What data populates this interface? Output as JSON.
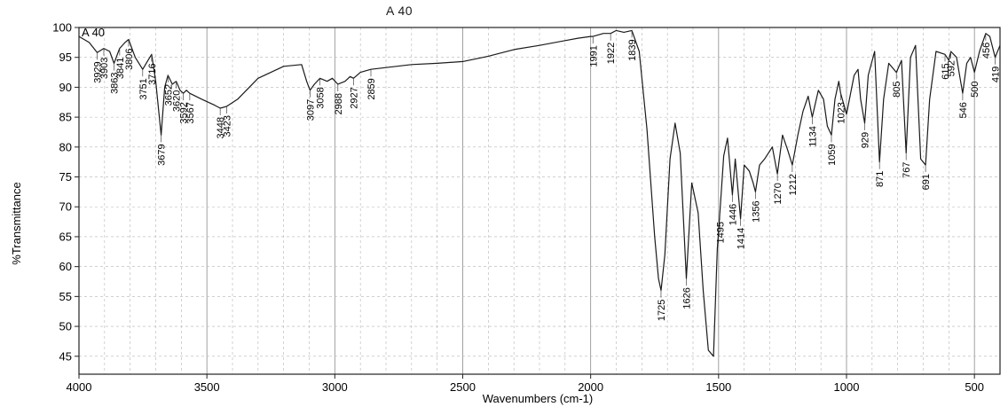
{
  "chart_data": {
    "type": "line",
    "title": "A 40",
    "inner_label": "A 40",
    "xlabel": "Wavenumbers (cm-1)",
    "ylabel": "%Transmittance",
    "xlim": [
      4000,
      400
    ],
    "ylim": [
      42,
      100
    ],
    "x_ticks": [
      4000,
      3500,
      3000,
      2500,
      2000,
      1500,
      1000,
      500
    ],
    "y_ticks": [
      45,
      50,
      55,
      60,
      65,
      70,
      75,
      80,
      85,
      90,
      95,
      100
    ],
    "grid": true,
    "series": [
      {
        "x": [
          4000,
          3960,
          3929,
          3903,
          3880,
          3863,
          3841,
          3820,
          3806,
          3780,
          3751,
          3730,
          3716,
          3700,
          3679,
          3665,
          3652,
          3635,
          3620,
          3605,
          3592,
          3580,
          3567,
          3520,
          3470,
          3448,
          3423,
          3380,
          3300,
          3200,
          3130,
          3110,
          3097,
          3080,
          3058,
          3030,
          3010,
          2988,
          2960,
          2940,
          2927,
          2900,
          2859,
          2800,
          2700,
          2600,
          2500,
          2400,
          2300,
          2200,
          2100,
          2050,
          2000,
          1991,
          1950,
          1922,
          1900,
          1870,
          1839,
          1810,
          1780,
          1750,
          1735,
          1725,
          1710,
          1690,
          1670,
          1650,
          1626,
          1605,
          1580,
          1560,
          1540,
          1520,
          1505,
          1495,
          1480,
          1465,
          1446,
          1435,
          1414,
          1400,
          1380,
          1365,
          1356,
          1340,
          1320,
          1290,
          1270,
          1250,
          1230,
          1212,
          1190,
          1170,
          1150,
          1134,
          1110,
          1090,
          1075,
          1059,
          1045,
          1030,
          1023,
          1000,
          970,
          955,
          945,
          929,
          915,
          890,
          871,
          855,
          835,
          805,
          785,
          767,
          750,
          730,
          710,
          691,
          675,
          650,
          615,
          600,
          592,
          570,
          546,
          530,
          515,
          500,
          480,
          456,
          440,
          419,
          400
        ],
        "y": [
          98.5,
          97.5,
          95.8,
          96.5,
          96,
          94,
          96.5,
          97.5,
          98,
          95,
          93,
          94.5,
          95.5,
          91,
          82,
          90,
          92,
          90.5,
          91,
          89.5,
          89,
          89.5,
          89,
          88,
          87,
          86.5,
          86.8,
          88,
          91.5,
          93.5,
          93.8,
          91,
          89.5,
          90.5,
          91.5,
          91,
          91.5,
          90.5,
          91,
          91.8,
          91.5,
          92.5,
          93,
          93.3,
          93.8,
          94,
          94.3,
          95.2,
          96.3,
          97,
          97.8,
          98.2,
          98.5,
          98.5,
          99,
          99,
          99.5,
          99.2,
          99.5,
          96,
          83,
          65,
          58,
          56,
          62,
          78,
          84,
          79,
          58,
          74,
          69,
          56,
          46,
          45,
          63,
          69,
          78.5,
          81.5,
          72,
          78,
          68,
          77,
          76,
          74,
          72.5,
          77,
          78,
          80,
          75.5,
          82,
          79.5,
          77,
          82,
          86,
          88.5,
          85,
          89.5,
          88,
          83.5,
          82,
          88,
          91,
          89,
          85.5,
          92,
          93,
          88,
          84,
          92,
          96,
          77.5,
          88,
          94,
          92.5,
          94.5,
          79,
          95,
          97,
          78,
          77,
          88,
          96,
          95.5,
          94.5,
          96,
          95,
          89,
          94,
          95,
          92.5,
          96,
          99,
          98.5,
          95,
          97
        ]
      }
    ],
    "peak_labels": [
      "3929",
      "3903",
      "3863",
      "3841",
      "3806",
      "3751",
      "3716",
      "3679",
      "3652",
      "3620",
      "3592",
      "3567",
      "3448",
      "3423",
      "3097",
      "3058",
      "2988",
      "2927",
      "2859",
      "1991",
      "1922",
      "1839",
      "1725",
      "1626",
      "1495",
      "1446",
      "1414",
      "1356",
      "1270",
      "1212",
      "1134",
      "1059",
      "1023",
      "929",
      "871",
      "805",
      "767",
      "691",
      "615",
      "592",
      "546",
      "500",
      "456",
      "419"
    ]
  }
}
